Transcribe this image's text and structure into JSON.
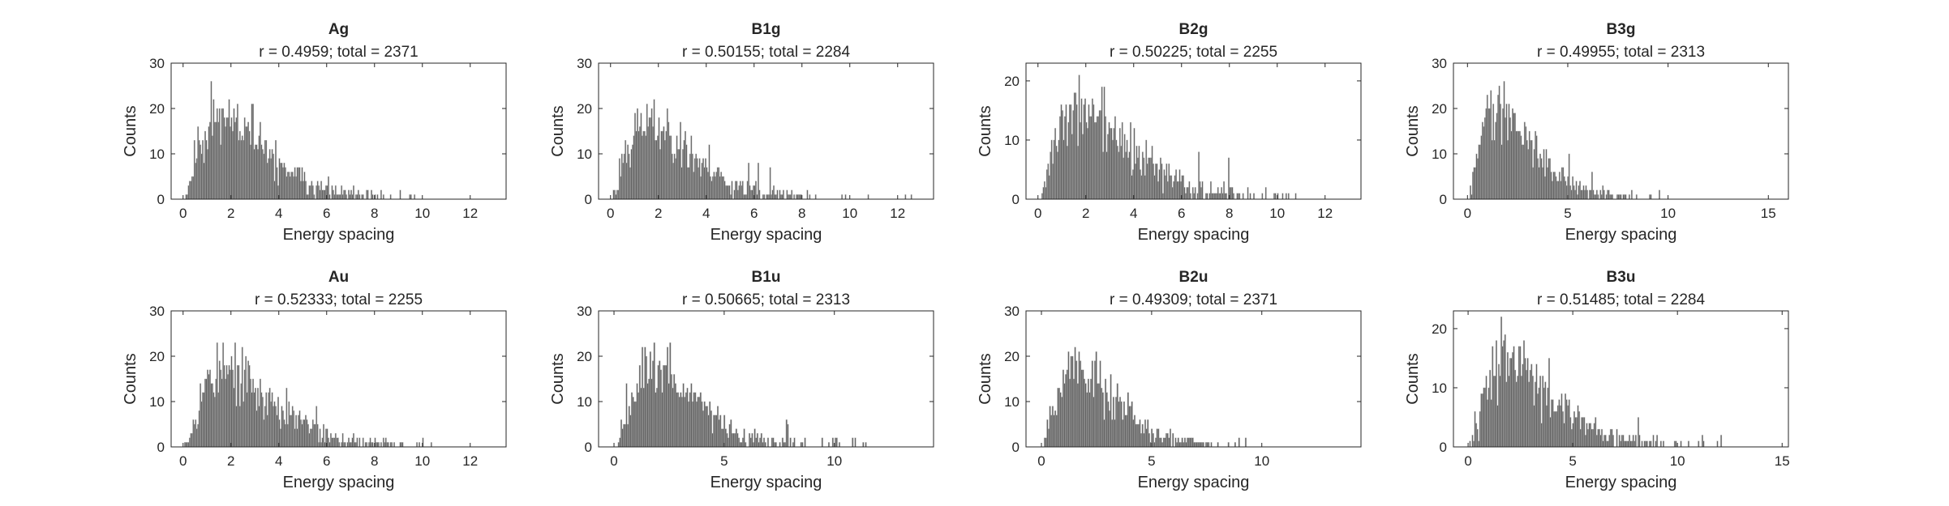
{
  "figure": {
    "background": "#ffffff",
    "bar_color": "#646464",
    "edge_color": "#b4b4b4",
    "axis_color": "#262626"
  },
  "chart_data": [
    {
      "type": "bar",
      "title": "Ag",
      "subtitle": "r = 0.4959; total = 2371",
      "xlabel": "Energy spacing",
      "ylabel": "Counts",
      "xlim": [
        -0.5,
        13.5
      ],
      "ylim": [
        0,
        30
      ],
      "xticks": [
        "0",
        "2",
        "4",
        "6",
        "8",
        "10",
        "12"
      ],
      "yticks": [
        "0",
        "10",
        "20",
        "30"
      ],
      "grid": false,
      "bins": {
        "start": 0,
        "width": 0.05,
        "peak_x": 1.6,
        "peak_y": 19,
        "max_x": 12.9,
        "shape": 1.6,
        "seed": 11
      }
    },
    {
      "type": "bar",
      "title": "B1g",
      "subtitle": "r = 0.50155; total = 2284",
      "xlabel": "Energy spacing",
      "ylabel": "Counts",
      "xlim": [
        -0.5,
        13.5
      ],
      "ylim": [
        0,
        30
      ],
      "xticks": [
        "0",
        "2",
        "4",
        "6",
        "8",
        "10",
        "12"
      ],
      "yticks": [
        "0",
        "10",
        "20",
        "30"
      ],
      "grid": false,
      "bins": {
        "start": 0,
        "width": 0.05,
        "peak_x": 1.6,
        "peak_y": 17,
        "max_x": 12.9,
        "shape": 1.5,
        "seed": 23
      }
    },
    {
      "type": "bar",
      "title": "B2g",
      "subtitle": "r = 0.50225; total = 2255",
      "xlabel": "Energy spacing",
      "ylabel": "Counts",
      "xlim": [
        -0.5,
        13.5
      ],
      "ylim": [
        0,
        23
      ],
      "xticks": [
        "0",
        "2",
        "4",
        "6",
        "8",
        "10",
        "12"
      ],
      "yticks": [
        "0",
        "10",
        "20"
      ],
      "grid": false,
      "bins": {
        "start": 0,
        "width": 0.05,
        "peak_x": 1.8,
        "peak_y": 15,
        "max_x": 12.2,
        "shape": 1.5,
        "seed": 37
      }
    },
    {
      "type": "bar",
      "title": "B3g",
      "subtitle": "r = 0.49955; total = 2313",
      "xlabel": "Energy spacing",
      "ylabel": "Counts",
      "xlim": [
        -0.7,
        16
      ],
      "ylim": [
        0,
        30
      ],
      "xticks": [
        "0",
        "5",
        "10",
        "15"
      ],
      "yticks": [
        "0",
        "10",
        "20",
        "30"
      ],
      "grid": false,
      "bins": {
        "start": 0,
        "width": 0.06,
        "peak_x": 1.6,
        "peak_y": 20,
        "max_x": 12.0,
        "shape": 1.6,
        "seed": 41
      }
    },
    {
      "type": "bar",
      "title": "Au",
      "subtitle": "r = 0.52333; total = 2255",
      "xlabel": "Energy spacing",
      "ylabel": "Counts",
      "xlim": [
        -0.5,
        13.5
      ],
      "ylim": [
        0,
        30
      ],
      "xticks": [
        "0",
        "2",
        "4",
        "6",
        "8",
        "10",
        "12"
      ],
      "yticks": [
        "0",
        "10",
        "20",
        "30"
      ],
      "grid": false,
      "bins": {
        "start": 0,
        "width": 0.05,
        "peak_x": 1.8,
        "peak_y": 17,
        "max_x": 11.8,
        "shape": 1.6,
        "seed": 53
      }
    },
    {
      "type": "bar",
      "title": "B1u",
      "subtitle": "r = 0.50665; total = 2313",
      "xlabel": "Energy spacing",
      "ylabel": "Counts",
      "xlim": [
        -0.7,
        14.5
      ],
      "ylim": [
        0,
        30
      ],
      "xticks": [
        "0",
        "5",
        "10"
      ],
      "yticks": [
        "0",
        "10",
        "20",
        "30"
      ],
      "grid": false,
      "bins": {
        "start": 0,
        "width": 0.06,
        "peak_x": 1.8,
        "peak_y": 17,
        "max_x": 13.5,
        "shape": 1.6,
        "seed": 67
      }
    },
    {
      "type": "bar",
      "title": "B2u",
      "subtitle": "r = 0.49309; total = 2371",
      "xlabel": "Energy spacing",
      "ylabel": "Counts",
      "xlim": [
        -0.7,
        14.5
      ],
      "ylim": [
        0,
        30
      ],
      "xticks": [
        "0",
        "5",
        "10"
      ],
      "yticks": [
        "0",
        "10",
        "20",
        "30"
      ],
      "grid": false,
      "bins": {
        "start": 0,
        "width": 0.06,
        "peak_x": 1.6,
        "peak_y": 18,
        "max_x": 12.5,
        "shape": 1.6,
        "seed": 79
      }
    },
    {
      "type": "bar",
      "title": "B3u",
      "subtitle": "r = 0.51485; total = 2284",
      "xlabel": "Energy spacing",
      "ylabel": "Counts",
      "xlim": [
        -0.7,
        15.3
      ],
      "ylim": [
        0,
        23
      ],
      "xticks": [
        "0",
        "5",
        "10",
        "15"
      ],
      "yticks": [
        "0",
        "10",
        "20"
      ],
      "grid": false,
      "bins": {
        "start": 0,
        "width": 0.06,
        "peak_x": 1.8,
        "peak_y": 15,
        "max_x": 14.6,
        "shape": 1.5,
        "seed": 97
      }
    }
  ]
}
